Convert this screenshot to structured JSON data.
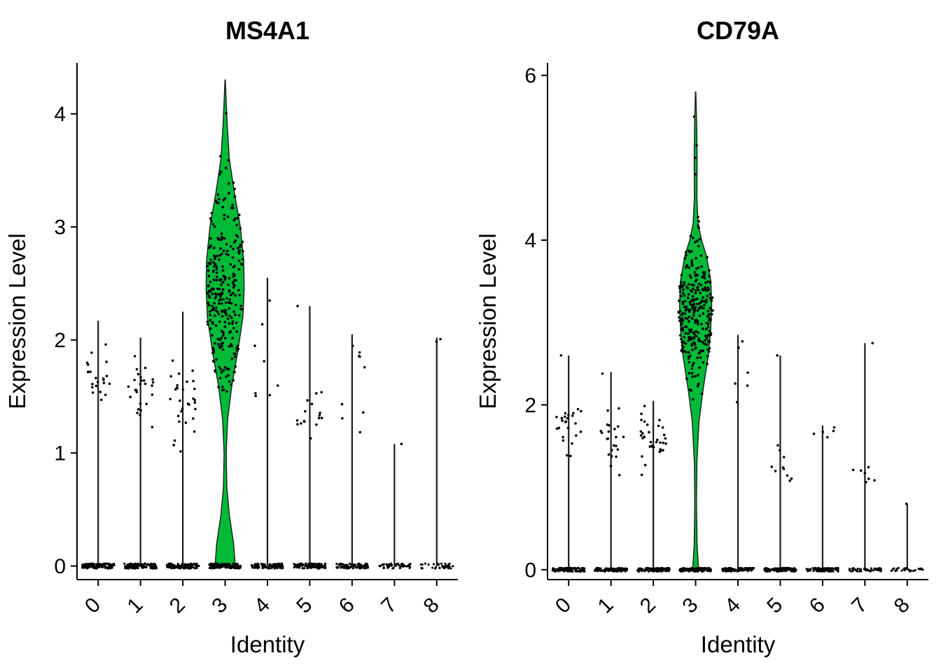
{
  "figure": {
    "background": "#ffffff"
  },
  "chart_data": [
    {
      "type": "violin",
      "title": "MS4A1",
      "xlabel": "Identity",
      "ylabel": "Expression Level",
      "categories": [
        "0",
        "1",
        "2",
        "3",
        "4",
        "5",
        "6",
        "7",
        "8"
      ],
      "ylim": [
        -0.12,
        4.45
      ],
      "yticks": [
        0,
        1,
        2,
        3,
        4
      ],
      "violin_color": "#00BA38",
      "dot_color": "#000000",
      "line_color": "#1c1c1c",
      "clusters": [
        {
          "id": "0",
          "line_max": 2.17,
          "zero_n": 120,
          "points": {
            "n": 22,
            "mean": 1.65,
            "sd": 0.18,
            "min": 1.38,
            "max": 2.17
          }
        },
        {
          "id": "1",
          "line_max": 2.02,
          "zero_n": 120,
          "points": {
            "n": 26,
            "mean": 1.55,
            "sd": 0.2,
            "min": 1.18,
            "max": 2.02
          }
        },
        {
          "id": "2",
          "line_max": 2.25,
          "zero_n": 120,
          "points": {
            "n": 30,
            "mean": 1.42,
            "sd": 0.22,
            "min": 0.95,
            "max": 2.25
          }
        },
        {
          "id": "3",
          "zero_n": 110,
          "violin_profile": [
            [
              0,
              0.24
            ],
            [
              0.2,
              0.2
            ],
            [
              0.45,
              0.1
            ],
            [
              0.7,
              0.04
            ],
            [
              1.0,
              0.025
            ],
            [
              1.3,
              0.06
            ],
            [
              1.6,
              0.16
            ],
            [
              1.9,
              0.3
            ],
            [
              2.2,
              0.42
            ],
            [
              2.45,
              0.45
            ],
            [
              2.7,
              0.44
            ],
            [
              3.0,
              0.36
            ],
            [
              3.3,
              0.22
            ],
            [
              3.6,
              0.1
            ],
            [
              3.9,
              0.05
            ],
            [
              4.15,
              0.02
            ],
            [
              4.3,
              0.005
            ]
          ],
          "points": {
            "n": 290,
            "mean": 2.45,
            "sd": 0.48,
            "min": 1.5,
            "max": 4.05
          }
        },
        {
          "id": "4",
          "line_max": 2.55,
          "zero_n": 95,
          "points": {
            "n": 8,
            "mean": 1.9,
            "sd": 0.35,
            "min": 1.35,
            "max": 2.55
          }
        },
        {
          "id": "5",
          "line_max": 2.3,
          "zero_n": 100,
          "points": {
            "n": 16,
            "mean": 1.32,
            "sd": 0.18,
            "min": 1.08,
            "max": 1.55
          },
          "extra_points": [
            2.3
          ]
        },
        {
          "id": "6",
          "line_max": 2.05,
          "zero_n": 90,
          "points": {
            "n": 9,
            "mean": 1.6,
            "sd": 0.3,
            "min": 1.1,
            "max": 2.05
          }
        },
        {
          "id": "7",
          "line_max": 1.08,
          "zero_n": 45,
          "points": {
            "n": 1,
            "mean": 1.08,
            "sd": 0,
            "min": 1.08,
            "max": 1.08
          }
        },
        {
          "id": "8",
          "line_max": 2.02,
          "zero_n": 35,
          "points": {
            "n": 2,
            "mean": 2.0,
            "sd": 0.02,
            "min": 1.97,
            "max": 2.02
          }
        }
      ]
    },
    {
      "type": "violin",
      "title": "CD79A",
      "xlabel": "Identity",
      "ylabel": "Expression Level",
      "categories": [
        "0",
        "1",
        "2",
        "3",
        "4",
        "5",
        "6",
        "7",
        "8"
      ],
      "ylim": [
        -0.12,
        6.15
      ],
      "yticks": [
        0,
        2,
        4,
        6
      ],
      "violin_color": "#00BA38",
      "dot_color": "#000000",
      "line_color": "#1c1c1c",
      "clusters": [
        {
          "id": "0",
          "line_max": 2.6,
          "zero_n": 120,
          "points": {
            "n": 24,
            "mean": 1.7,
            "sd": 0.2,
            "min": 1.3,
            "max": 2.1
          },
          "extra_points": [
            2.6
          ]
        },
        {
          "id": "1",
          "line_max": 2.4,
          "zero_n": 120,
          "points": {
            "n": 22,
            "mean": 1.6,
            "sd": 0.25,
            "min": 1.05,
            "max": 2.05
          },
          "extra_points": [
            2.38
          ]
        },
        {
          "id": "2",
          "line_max": 2.05,
          "zero_n": 120,
          "points": {
            "n": 34,
            "mean": 1.6,
            "sd": 0.2,
            "min": 1.05,
            "max": 2.05
          }
        },
        {
          "id": "3",
          "zero_n": 110,
          "violin_profile": [
            [
              0,
              0.07
            ],
            [
              0.3,
              0.035
            ],
            [
              0.8,
              0.02
            ],
            [
              1.3,
              0.03
            ],
            [
              1.8,
              0.08
            ],
            [
              2.2,
              0.18
            ],
            [
              2.6,
              0.3
            ],
            [
              2.9,
              0.355
            ],
            [
              3.2,
              0.38
            ],
            [
              3.5,
              0.36
            ],
            [
              3.8,
              0.26
            ],
            [
              4.0,
              0.14
            ],
            [
              4.2,
              0.06
            ],
            [
              4.5,
              0.03
            ],
            [
              5.0,
              0.035
            ],
            [
              5.4,
              0.025
            ],
            [
              5.8,
              0.005
            ]
          ],
          "points": {
            "n": 300,
            "mean": 3.1,
            "sd": 0.42,
            "min": 1.85,
            "max": 4.3
          },
          "extra_points": [
            4.8,
            5.0,
            5.15,
            5.5
          ]
        },
        {
          "id": "4",
          "line_max": 2.85,
          "zero_n": 100,
          "points": {
            "n": 6,
            "mean": 2.3,
            "sd": 0.35,
            "min": 1.9,
            "max": 2.85
          }
        },
        {
          "id": "5",
          "line_max": 2.6,
          "zero_n": 100,
          "points": {
            "n": 10,
            "mean": 1.3,
            "sd": 0.15,
            "min": 1.05,
            "max": 1.55
          },
          "extra_points": [
            2.6
          ]
        },
        {
          "id": "6",
          "line_max": 1.75,
          "zero_n": 90,
          "points": {
            "n": 5,
            "mean": 1.68,
            "sd": 0.05,
            "min": 1.6,
            "max": 1.75
          }
        },
        {
          "id": "7",
          "line_max": 2.75,
          "zero_n": 55,
          "points": {
            "n": 7,
            "mean": 1.15,
            "sd": 0.12,
            "min": 1.0,
            "max": 1.35
          },
          "extra_points": [
            2.75
          ]
        },
        {
          "id": "8",
          "line_max": 0.8,
          "zero_n": 25,
          "points": {
            "n": 1,
            "mean": 0.8,
            "sd": 0,
            "min": 0.8,
            "max": 0.8
          }
        }
      ]
    }
  ]
}
